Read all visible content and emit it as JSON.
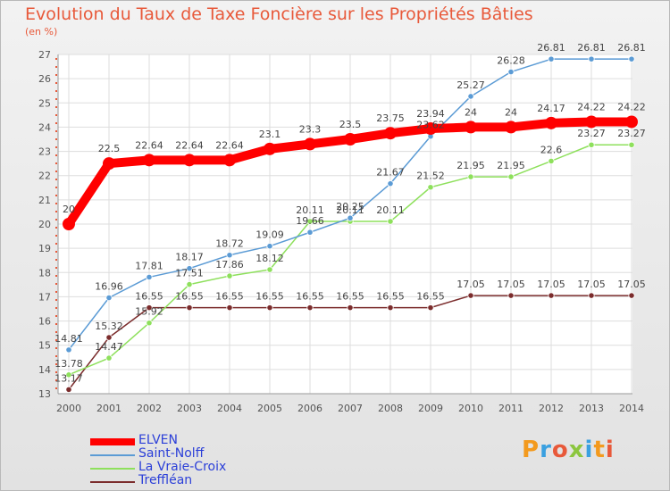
{
  "chart_data": {
    "type": "line",
    "title": "Evolution du Taux de Taxe Foncière sur les Propriétés Bâties",
    "subtitle": "(en %)",
    "xlabel": "",
    "ylabel": "",
    "ylim": [
      13,
      27
    ],
    "yticks": [
      "13",
      "14",
      "15",
      "16",
      "17",
      "18",
      "19",
      "20",
      "21",
      "22",
      "23",
      "24",
      "25",
      "26",
      "27"
    ],
    "x": [
      "2000",
      "2001",
      "2002",
      "2003",
      "2004",
      "2005",
      "2006",
      "2007",
      "2008",
      "2009",
      "2010",
      "2011",
      "2012",
      "2013",
      "2014"
    ],
    "series": [
      {
        "name": "ELVEN",
        "color": "#ff0000",
        "values": [
          20,
          22.5,
          22.64,
          22.64,
          22.64,
          23.1,
          23.3,
          23.5,
          23.75,
          23.94,
          24,
          24,
          24.17,
          24.22,
          24.22
        ],
        "labels": [
          "20",
          "22.5",
          "22.64",
          "22.64",
          "22.64",
          "23.1",
          "23.3",
          "23.5",
          "23.75",
          "23.94",
          "24",
          "24",
          "24.17",
          "24.22",
          "24.22"
        ]
      },
      {
        "name": "Saint-Nolff",
        "color": "#5b9bd5",
        "values": [
          14.81,
          16.96,
          17.81,
          18.17,
          18.72,
          19.09,
          19.66,
          20.25,
          21.67,
          23.62,
          25.27,
          26.28,
          26.81,
          26.81,
          26.81
        ],
        "labels": [
          "14.81",
          "16.96",
          "17.81",
          "18.17",
          "18.72",
          "19.09",
          "19.66",
          "20.25",
          "21.67",
          "23.62",
          "25.27",
          "26.28",
          "26.81",
          "26.81",
          "26.81"
        ]
      },
      {
        "name": "La Vraie-Croix",
        "color": "#8ee05c",
        "values": [
          13.78,
          14.47,
          15.92,
          17.51,
          17.86,
          18.12,
          20.11,
          20.11,
          20.11,
          21.52,
          21.95,
          21.95,
          22.6,
          23.27,
          23.27
        ],
        "labels": [
          "13.78",
          "14.47",
          "15.92",
          "17.51",
          "17.86",
          "18.12",
          "20.11",
          "20.11",
          "20.11",
          "21.52",
          "21.95",
          "21.95",
          "22.6",
          "23.27",
          "23.27"
        ]
      },
      {
        "name": "Treffléan",
        "color": "#7b2c2c",
        "values": [
          13.17,
          15.32,
          16.55,
          16.55,
          16.55,
          16.55,
          16.55,
          16.55,
          16.55,
          16.55,
          17.05,
          17.05,
          17.05,
          17.05,
          17.05
        ],
        "labels": [
          "13.17",
          "15.32",
          "16.55",
          "16.55",
          "16.55",
          "16.55",
          "16.55",
          "16.55",
          "16.55",
          "16.55",
          "17.05",
          "17.05",
          "17.05",
          "17.05",
          "17.05"
        ]
      }
    ],
    "legend_position": "bottom-left"
  },
  "logo": {
    "text": "Proxiti"
  }
}
